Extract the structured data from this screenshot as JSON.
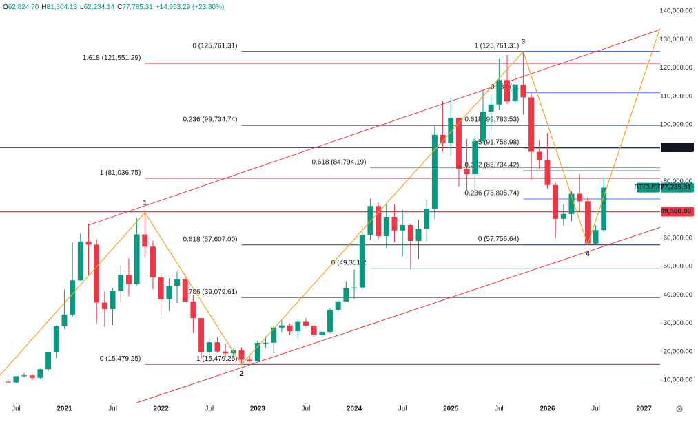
{
  "chart_data": {
    "type": "candlestick",
    "header": [
      {
        "label": "O",
        "value": "62,824.70"
      },
      {
        "label": "H",
        "value": "81,304.13"
      },
      {
        "label": "L",
        "value": "62,234.14"
      },
      {
        "label": "C",
        "value": "77,785.31"
      }
    ],
    "change": "+14,953.29 (+23.80%)",
    "up_color": "#089981",
    "down_color": "#f23645",
    "x": [
      "2020-06",
      "2020-07",
      "2020-08",
      "2020-09",
      "2020-10",
      "2020-11",
      "2020-12",
      "2021-01",
      "2021-02",
      "2021-03",
      "2021-04",
      "2021-05",
      "2021-06",
      "2021-07",
      "2021-08",
      "2021-09",
      "2021-10",
      "2021-11",
      "2021-12",
      "2022-01",
      "2022-02",
      "2022-03",
      "2022-04",
      "2022-05",
      "2022-06",
      "2022-07",
      "2022-08",
      "2022-09",
      "2022-10",
      "2022-11",
      "2022-12",
      "2023-01",
      "2023-02",
      "2023-03",
      "2023-04",
      "2023-05",
      "2023-06",
      "2023-07",
      "2023-08",
      "2023-09",
      "2023-10",
      "2023-11",
      "2023-12",
      "2024-01",
      "2024-02",
      "2024-03",
      "2024-04",
      "2024-05",
      "2024-06",
      "2024-07",
      "2024-08",
      "2024-09",
      "2024-10",
      "2024-11",
      "2024-12",
      "2025-01",
      "2025-02",
      "2025-03",
      "2025-04",
      "2025-05",
      "2025-06",
      "2025-07",
      "2025-08",
      "2025-09",
      "2025-10",
      "2025-11",
      "2025-12",
      "2026-01",
      "2026-02",
      "2026-03",
      "2026-04",
      "2026-05",
      "2026-06",
      "2026-07",
      "2026-08"
    ],
    "open": [
      9450,
      9140,
      11350,
      11650,
      10780,
      13800,
      19700,
      29000,
      33100,
      45100,
      58800,
      57700,
      37300,
      35000,
      41500,
      47100,
      43800,
      61300,
      57000,
      46200,
      38500,
      43200,
      45500,
      37600,
      31800,
      19900,
      23300,
      20050,
      19400,
      20500,
      17160,
      16540,
      23100,
      23150,
      28500,
      29250,
      27200,
      30500,
      29200,
      25900,
      27000,
      34700,
      37700,
      42300,
      42600,
      61200,
      71300,
      60700,
      67500,
      62700,
      64600,
      59000,
      63300,
      70200,
      96400,
      93400,
      102400,
      84300,
      82500,
      94200,
      104600,
      107100,
      115700,
      108200,
      114000,
      109600,
      90400,
      87600,
      78700,
      66800,
      68500,
      75600,
      73000,
      58100,
      62824.7
    ],
    "high": [
      10380,
      11450,
      12470,
      12100,
      14100,
      19900,
      29300,
      41900,
      58300,
      61800,
      64900,
      59600,
      41300,
      42400,
      50500,
      52900,
      67000,
      69000,
      59100,
      47900,
      45800,
      48200,
      47400,
      40000,
      31900,
      24700,
      25200,
      22800,
      21000,
      21500,
      18400,
      23900,
      25300,
      29200,
      31000,
      29800,
      31400,
      31800,
      30200,
      27500,
      35200,
      38400,
      44700,
      48900,
      64000,
      73800,
      72700,
      71900,
      71900,
      70000,
      65100,
      66500,
      73600,
      99600,
      108300,
      109300,
      102500,
      95000,
      95800,
      112000,
      110500,
      123200,
      124500,
      117900,
      125761.31,
      111000,
      94600,
      97000,
      79500,
      72000,
      76500,
      82500,
      74500,
      64500,
      81304.13
    ],
    "low": [
      8900,
      8970,
      10990,
      9880,
      10400,
      13200,
      17600,
      28100,
      32300,
      45000,
      47000,
      30000,
      28800,
      29300,
      37300,
      39600,
      43300,
      53300,
      42000,
      32900,
      34300,
      37200,
      37700,
      26700,
      17600,
      18800,
      19600,
      18100,
      18200,
      15479.25,
      16300,
      16500,
      21400,
      19500,
      26900,
      25800,
      24800,
      28900,
      25300,
      24900,
      26600,
      34100,
      37600,
      38500,
      41900,
      59300,
      59600,
      56500,
      58400,
      53500,
      49000,
      52600,
      58900,
      66800,
      90500,
      89200,
      78200,
      76600,
      74400,
      93300,
      98200,
      105100,
      107300,
      107200,
      103500,
      80500,
      84400,
      77500,
      60000,
      64500,
      66000,
      69500,
      57756.64,
      57900,
      62234.14
    ],
    "close": [
      9140,
      11350,
      11650,
      10780,
      13800,
      19700,
      29000,
      33100,
      45100,
      58800,
      57700,
      37300,
      35000,
      41500,
      47100,
      43800,
      61300,
      57000,
      46200,
      38500,
      43200,
      45500,
      37600,
      31800,
      19900,
      23300,
      20050,
      19400,
      20500,
      17160,
      16540,
      23100,
      23150,
      28500,
      29250,
      27200,
      30500,
      29200,
      25900,
      27000,
      34700,
      37700,
      42300,
      42600,
      61200,
      71300,
      60700,
      67500,
      62700,
      64600,
      59000,
      63300,
      70200,
      96400,
      93400,
      102400,
      84300,
      82500,
      94200,
      104600,
      107100,
      115700,
      108200,
      114000,
      109600,
      90400,
      87600,
      78700,
      66800,
      68500,
      75600,
      73000,
      58100,
      62832.02,
      77785.31
    ],
    "xlim": [
      "2020-05",
      "2027-03"
    ],
    "xticks": [
      {
        "value": "2020-07",
        "label": "Jul"
      },
      {
        "value": "2021-01",
        "label": "2021"
      },
      {
        "value": "2021-07",
        "label": "Jul"
      },
      {
        "value": "2022-01",
        "label": "2022"
      },
      {
        "value": "2022-07",
        "label": "Jul"
      },
      {
        "value": "2023-01",
        "label": "2023"
      },
      {
        "value": "2023-07",
        "label": "Jul"
      },
      {
        "value": "2024-01",
        "label": "2024"
      },
      {
        "value": "2024-07",
        "label": "Jul"
      },
      {
        "value": "2025-01",
        "label": "2025"
      },
      {
        "value": "2025-07",
        "label": "Jul"
      },
      {
        "value": "2026-01",
        "label": "2026"
      },
      {
        "value": "2026-07",
        "label": "Jul"
      },
      {
        "value": "2027-01",
        "label": "2027"
      }
    ],
    "ylim": [
      2000,
      143900
    ],
    "yticks": [
      {
        "value": 10000,
        "label": "10,000.00"
      },
      {
        "value": 20000,
        "label": "20,000.00"
      },
      {
        "value": 30000,
        "label": "30,000.00"
      },
      {
        "value": 40000,
        "label": "40,000.00"
      },
      {
        "value": 50000,
        "label": "50,000.00"
      },
      {
        "value": 60000,
        "label": "60,000.00"
      },
      {
        "value": 80000,
        "label": "80,000.00"
      },
      {
        "value": 100000,
        "label": "100,000.00"
      },
      {
        "value": 110000,
        "label": "110,000.00"
      },
      {
        "value": 120000,
        "label": "120,000.00"
      },
      {
        "value": 130000,
        "label": "130,000.00"
      },
      {
        "value": 140000,
        "label": "140,000.00"
      }
    ],
    "grid": false,
    "price_tags": [
      {
        "label": "92,000.00",
        "value": 92000,
        "color": "#131722",
        "line": true
      },
      {
        "name": "BTCUSD",
        "label": "77,785.31",
        "value": 77785.31,
        "color": "#089981",
        "line": false
      },
      {
        "label": "69,300.00",
        "value": 69300,
        "color": "#f23645",
        "line": true
      }
    ],
    "levels": [
      {
        "label": "0 (125,761.31)",
        "value": 125761.31,
        "color": "#131722",
        "from": "2022-11"
      },
      {
        "label": "0.236 (99,734.74)",
        "value": 99734.74,
        "color": "#131722",
        "from": "2022-11"
      },
      {
        "label": "0.618 (57,607.00)",
        "value": 57607.0,
        "color": "#131722",
        "from": "2022-11"
      },
      {
        "label": "0.786 (39,079.61)",
        "value": 39079.61,
        "color": "#131722",
        "from": "2022-11"
      },
      {
        "label": "1 (15,479.25)",
        "value": 15479.25,
        "color": "#131722",
        "from": "2022-11"
      },
      {
        "label": "1.618 (121,551.29)",
        "value": 121551.29,
        "color": "#f23645",
        "from": "2021-11"
      },
      {
        "label": "1 (81,036.75)",
        "value": 81036.75,
        "color": "#f23645",
        "from": "2021-11"
      },
      {
        "label": "0 (15,479.25)",
        "value": 15479.25,
        "color": "#f23645",
        "from": "2021-11"
      },
      {
        "label": "0.618 (84,794.19)",
        "value": 84794.19,
        "color": "#22ab94",
        "from": "2024-03"
      },
      {
        "label": "0 (49,351.2",
        "value": 49351.2,
        "color": "#22ab94",
        "from": "2024-03"
      },
      {
        "label": "1 (125,761.31)",
        "value": 125761.31,
        "color": "#2962ff",
        "from": "2025-10"
      },
      {
        "label": "0.786 (11",
        "value": 111208.31,
        "color": "#2962ff",
        "from": "2025-10"
      },
      {
        "label": "0.618 (99,783.53)",
        "value": 99783.53,
        "color": "#2962ff",
        "from": "2025-10"
      },
      {
        "label": "0.5 (91,758.98)",
        "value": 91758.98,
        "color": "#2962ff",
        "from": "2025-10"
      },
      {
        "label": "0.382 (83,734.42)",
        "value": 83734.42,
        "color": "#2962ff",
        "from": "2025-10"
      },
      {
        "label": "0.236 (73,805.74)",
        "value": 73805.74,
        "color": "#2962ff",
        "from": "2025-10"
      },
      {
        "label": "0 (57,756.64)",
        "value": 57756.64,
        "color": "#2962ff",
        "from": "2025-10"
      }
    ],
    "wave_color": "#f7a325",
    "wave_path": [
      {
        "x": "2020-05",
        "value": 11700
      },
      {
        "x": "2021-11",
        "value": 69000
      },
      {
        "x": "2022-11",
        "value": 15479.25
      },
      {
        "x": "2025-10",
        "value": 125761.31
      },
      {
        "x": "2026-06",
        "value": 57756.64
      },
      {
        "x": "2027-03",
        "value": 134000
      }
    ],
    "waves": [
      {
        "label": "1",
        "x": "2021-11",
        "value": 69000,
        "position": "above"
      },
      {
        "label": "2",
        "x": "2022-11",
        "value": 15479.25,
        "position": "below"
      },
      {
        "label": "3",
        "x": "2025-10",
        "value": 125761.31,
        "position": "above"
      },
      {
        "label": "4",
        "x": "2026-06",
        "value": 57756.64,
        "position": "below"
      }
    ],
    "channel_color": "#f23645",
    "channel": [
      [
        {
          "x": "2021-04",
          "value": 64600
        },
        {
          "x": "2027-03",
          "value": 133450
        }
      ],
      [
        {
          "x": "2021-10",
          "value": 2000
        },
        {
          "x": "2027-03",
          "value": 63800
        }
      ]
    ]
  }
}
